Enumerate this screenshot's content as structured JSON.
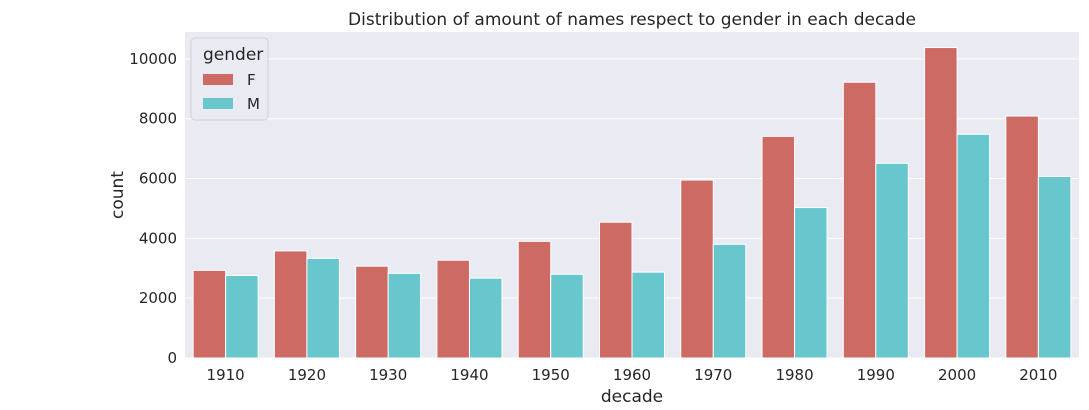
{
  "chart_data": {
    "type": "bar",
    "title": "Distribution of amount of names respect to gender in each decade",
    "xlabel": "decade",
    "ylabel": "count",
    "categories": [
      "1910",
      "1920",
      "1930",
      "1940",
      "1950",
      "1960",
      "1970",
      "1980",
      "1990",
      "2000",
      "2010"
    ],
    "series": [
      {
        "name": "F",
        "color": "#cc6a63",
        "values": [
          2930,
          3580,
          3070,
          3270,
          3900,
          4540,
          5950,
          7410,
          9220,
          10380,
          8090
        ]
      },
      {
        "name": "M",
        "color": "#67c7cd",
        "values": [
          2760,
          3330,
          2830,
          2670,
          2800,
          2870,
          3800,
          5030,
          6510,
          7480,
          6070
        ]
      }
    ],
    "ylim": [
      0,
      10900
    ],
    "yticks": [
      0,
      2000,
      4000,
      6000,
      8000,
      10000
    ],
    "grid": true,
    "legend": {
      "title": "gender",
      "placement": "top-left"
    },
    "colors": {
      "background": "#eaeaf2",
      "grid": "#ffffff",
      "text": "#262626"
    }
  }
}
